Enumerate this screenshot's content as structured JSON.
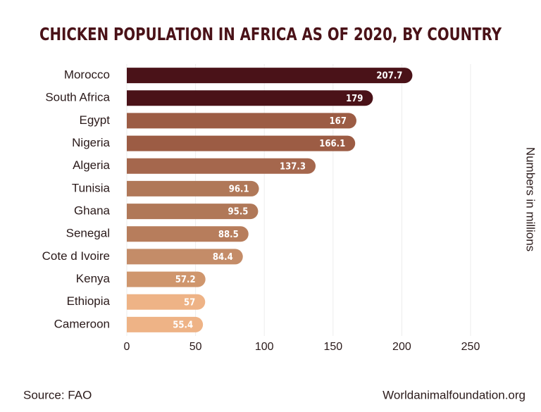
{
  "chart_data": {
    "type": "bar",
    "orientation": "horizontal",
    "title": "CHICKEN POPULATION IN AFRICA AS OF 2020, BY COUNTRY",
    "categories": [
      "Morocco",
      "South Africa",
      "Egypt",
      "Nigeria",
      "Algeria",
      "Tunisia",
      "Ghana",
      "Senegal",
      "Cote d Ivoire",
      "Kenya",
      "Ethiopia",
      "Cameroon"
    ],
    "values": [
      207.7,
      179,
      167,
      166.1,
      137.3,
      96.1,
      95.5,
      88.5,
      84.4,
      57.2,
      57,
      55.4
    ],
    "colors": [
      "#4a1218",
      "#4a1218",
      "#9c5c44",
      "#9c5c44",
      "#a5674d",
      "#b07858",
      "#b07858",
      "#b77d5c",
      "#c48c68",
      "#cf966d",
      "#eeb386",
      "#eeb386"
    ],
    "xlim": [
      0,
      250
    ],
    "xticks": [
      0,
      50,
      100,
      150,
      200,
      250
    ],
    "grid": true,
    "y2_label": "Numbers in millions",
    "source": "Source: FAO",
    "credit": "Worldanimalfoundation.org"
  }
}
